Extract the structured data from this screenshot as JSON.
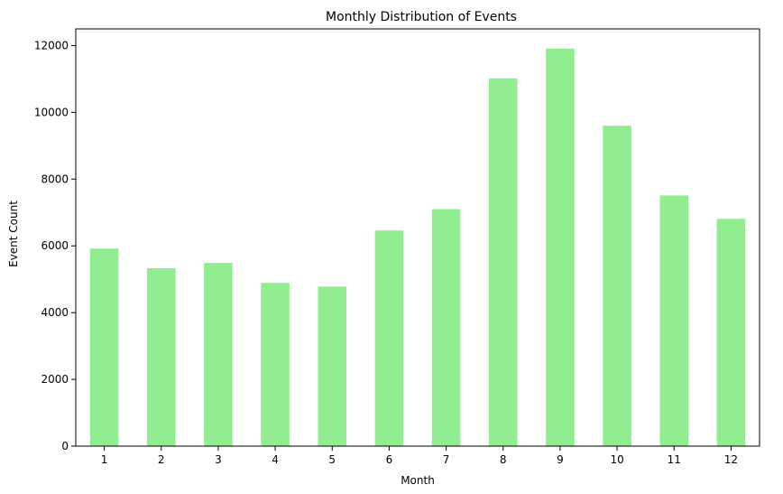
{
  "chart_data": {
    "type": "bar",
    "title": "Monthly Distribution of Events",
    "xlabel": "Month",
    "ylabel": "Event Count",
    "categories": [
      "1",
      "2",
      "3",
      "4",
      "5",
      "6",
      "7",
      "8",
      "9",
      "10",
      "11",
      "12"
    ],
    "values": [
      5920,
      5330,
      5490,
      4890,
      4780,
      6460,
      7100,
      11020,
      11910,
      9600,
      7510,
      6810
    ],
    "ylim": [
      0,
      12500
    ],
    "yticks": [
      0,
      2000,
      4000,
      6000,
      8000,
      10000,
      12000
    ],
    "grid": false,
    "legend": "none",
    "bar_color": "#90ee90"
  }
}
